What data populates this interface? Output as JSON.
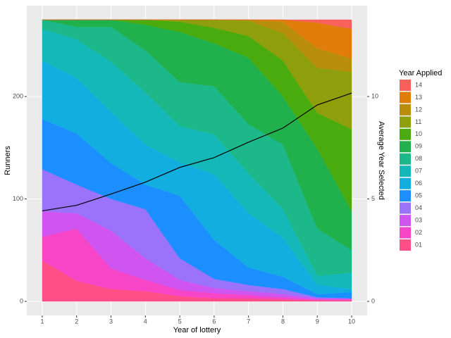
{
  "chart_data": {
    "type": "stacked-area",
    "x_label": "Year of lottery",
    "y_label": "Runners",
    "y2_label": "Average Year Selected",
    "legend_title": "Year Applied",
    "x": [
      1,
      2,
      3,
      4,
      5,
      6,
      7,
      8,
      9,
      10
    ],
    "xlim": [
      0.55,
      10.45
    ],
    "xticks": [
      1,
      2,
      3,
      4,
      5,
      6,
      7,
      8,
      9,
      10
    ],
    "ylim": [
      -13.75,
      288.75
    ],
    "yticks": [
      0,
      100,
      200
    ],
    "y2lim": [
      -0.6875,
      14.4375
    ],
    "y2ticks": [
      0,
      5,
      10
    ],
    "grid": true,
    "series": [
      {
        "name": "01",
        "color": "#FF4F86",
        "values": [
          40,
          20,
          12,
          10,
          5,
          3,
          3,
          2,
          1,
          1
        ]
      },
      {
        "name": "02",
        "color": "#F645C6",
        "values": [
          23,
          51,
          20,
          11,
          6,
          5,
          3,
          2,
          1,
          1
        ]
      },
      {
        "name": "03",
        "color": "#D055F0",
        "values": [
          25,
          15,
          37,
          21,
          10,
          5,
          4,
          3,
          1,
          1
        ]
      },
      {
        "name": "04",
        "color": "#9B72FA",
        "values": [
          41,
          28,
          31,
          48,
          21,
          9,
          6,
          5,
          1,
          0
        ]
      },
      {
        "name": "05",
        "color": "#1C8FFF",
        "values": [
          49,
          50,
          35,
          24,
          61,
          38,
          17,
          12,
          3,
          6
        ]
      },
      {
        "name": "06",
        "color": "#12AEE0",
        "values": [
          57,
          54,
          50,
          39,
          33,
          64,
          53,
          38,
          9,
          3
        ]
      },
      {
        "name": "07",
        "color": "#14B8B8",
        "values": [
          31,
          38,
          49,
          51,
          35,
          39,
          39,
          28,
          9,
          16
        ]
      },
      {
        "name": "08",
        "color": "#1CB88A",
        "values": [
          9,
          12,
          34,
          41,
          43,
          47,
          48,
          63,
          46,
          22
        ]
      },
      {
        "name": "09",
        "color": "#20B14D",
        "values": [
          0,
          7,
          7,
          25,
          49,
          42,
          65,
          47,
          78,
          38
        ]
      },
      {
        "name": "10",
        "color": "#4AAB0E",
        "values": [
          0,
          0,
          0,
          5,
          10,
          15,
          21,
          35,
          35,
          80
        ]
      },
      {
        "name": "11",
        "color": "#8F9E0C",
        "values": [
          0,
          0,
          0,
          0,
          2,
          8,
          15,
          27,
          44,
          56
        ]
      },
      {
        "name": "12",
        "color": "#BA8E0D",
        "values": [
          0,
          0,
          0,
          0,
          0,
          0,
          1,
          11,
          19,
          13
        ]
      },
      {
        "name": "13",
        "color": "#E07D08",
        "values": [
          0,
          0,
          0,
          0,
          0,
          0,
          0,
          2,
          25,
          29
        ]
      },
      {
        "name": "14",
        "color": "#F8605C",
        "values": [
          0,
          0,
          0,
          0,
          0,
          0,
          0,
          0,
          3,
          9
        ]
      }
    ],
    "line": {
      "axis": "y2",
      "color": "#000000",
      "values": [
        4.42,
        4.69,
        5.24,
        5.82,
        6.54,
        7.02,
        7.77,
        8.46,
        9.59,
        10.17
      ]
    }
  }
}
